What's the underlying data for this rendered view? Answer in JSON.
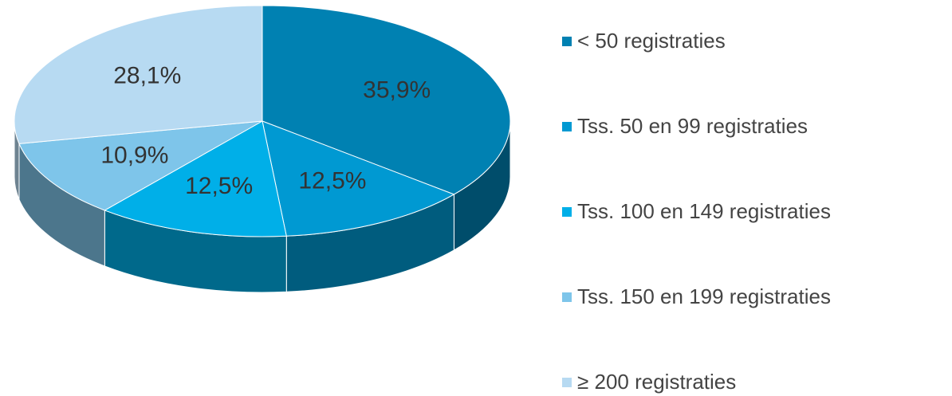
{
  "chart_data": {
    "type": "pie",
    "three_d": true,
    "categories": [
      "< 50 registraties",
      "Tss. 50 en 99 registraties",
      "Tss. 100 en 149 registraties",
      "Tss. 150 en 199 registraties",
      "≥ 200 registraties"
    ],
    "values": [
      35.9,
      12.5,
      12.5,
      10.9,
      28.1
    ],
    "value_labels": [
      "35,9%",
      "12,5%",
      "12,5%",
      "10,9%",
      "28,1%"
    ],
    "colors": [
      "#0081b2",
      "#0099d2",
      "#00afe8",
      "#7ec5ea",
      "#b7daf2"
    ],
    "legend": "right"
  }
}
